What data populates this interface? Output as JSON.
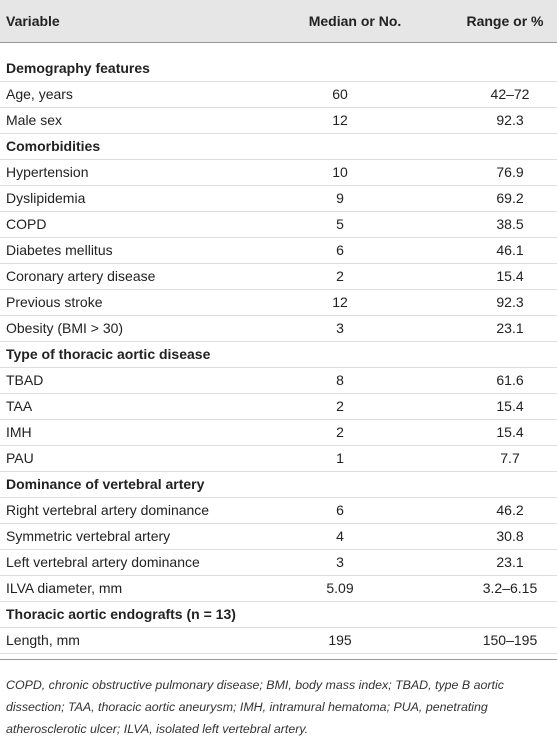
{
  "table": {
    "header": [
      "Variable",
      "Median or No.",
      "Range or %"
    ],
    "rows": [
      [
        "Demography features"
      ],
      [
        "Age, years",
        "60",
        "42–72"
      ],
      [
        "Male sex",
        "12",
        "92.3"
      ],
      [
        "Comorbidities"
      ],
      [
        "Hypertension",
        "10",
        "76.9"
      ],
      [
        "Dyslipidemia",
        "9",
        "69.2"
      ],
      [
        "COPD",
        "5",
        "38.5"
      ],
      [
        "Diabetes mellitus",
        "6",
        "46.1"
      ],
      [
        "Coronary artery disease",
        "2",
        "15.4"
      ],
      [
        "Previous stroke",
        "12",
        "92.3"
      ],
      [
        "Obesity (BMI > 30)",
        "3",
        "23.1"
      ],
      [
        "Type of thoracic aortic disease"
      ],
      [
        "TBAD",
        "8",
        "61.6"
      ],
      [
        "TAA",
        "2",
        "15.4"
      ],
      [
        "IMH",
        "2",
        "15.4"
      ],
      [
        "PAU",
        "1",
        "7.7"
      ],
      [
        "Dominance of vertebral artery"
      ],
      [
        "Right vertebral artery dominance",
        "6",
        "46.2"
      ],
      [
        "Symmetric vertebral artery",
        "4",
        "30.8"
      ],
      [
        "Left vertebral artery dominance",
        "3",
        "23.1"
      ],
      [
        "ILVA diameter, mm",
        "5.09",
        "3.2–6.15"
      ],
      [
        "Thoracic aortic endografts (n = 13)"
      ],
      [
        "Length, mm",
        "195",
        "150–195"
      ]
    ]
  },
  "footnote": "COPD, chronic obstructive pulmonary disease; BMI, body mass index; TBAD, type B aortic dissection; TAA, thoracic aortic aneurysm; IMH, intramural hematoma; PUA, penetrating atherosclerotic ulcer; ILVA, isolated left vertebral artery."
}
